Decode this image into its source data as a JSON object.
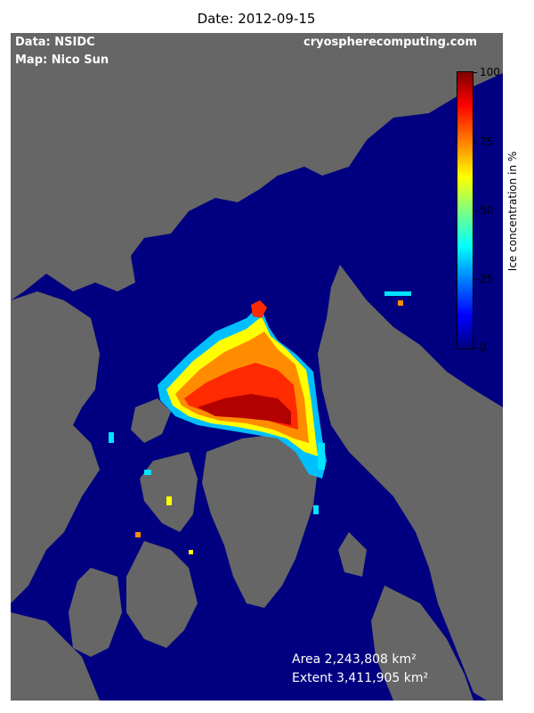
{
  "title": "Date: 2012-09-15",
  "credits": {
    "data": "Data: NSIDC",
    "map": "Map: Nico Sun",
    "site": "cryospherecomputing.com"
  },
  "stats": {
    "area": "Area 2,243,808 km²",
    "extent": "Extent 3,411,905 km²"
  },
  "colorbar": {
    "label": "Ice concentration in %",
    "ticks": [
      "0",
      "25",
      "50",
      "75",
      "100"
    ],
    "min": 0,
    "max": 100
  },
  "colors": {
    "ocean": "#000080",
    "land": "#666666",
    "ice_high": "#8b0000",
    "ice_low": "#0000ff"
  }
}
